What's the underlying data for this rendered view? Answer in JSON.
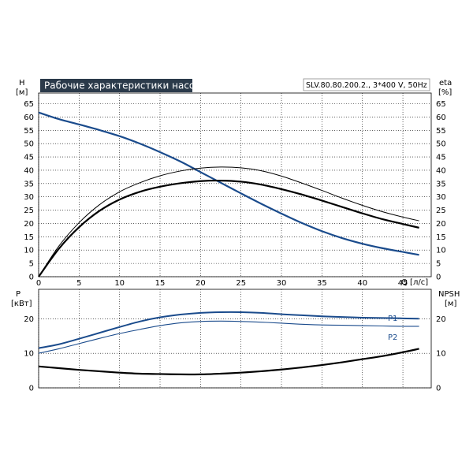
{
  "chart_data": [
    {
      "type": "line",
      "title": "Рабочие характеристики насоса",
      "subtitle": "SLV.80.80.200.2., 3*400 V, 50Hz",
      "ylabel_left": "H",
      "ylabel_left_unit": "[м]",
      "ylabel_right": "eta",
      "ylabel_right_unit": "[%]",
      "xlabel": "Q [л/с]",
      "x_ticks": [
        "0",
        "5",
        "10",
        "15",
        "20",
        "25",
        "30",
        "35",
        "40",
        "45"
      ],
      "y_ticks": [
        "0",
        "5",
        "10",
        "15",
        "20",
        "25",
        "30",
        "35",
        "40",
        "45",
        "50",
        "55",
        "60",
        "65"
      ],
      "xlim": [
        0,
        48.5
      ],
      "ylim": [
        0,
        69
      ],
      "grid": true,
      "colors": {
        "head": "#1a4b8c",
        "efficiency": "#000000"
      },
      "series": [
        {
          "key": "head",
          "x": [
            0,
            2.5,
            5,
            7.5,
            10,
            12.5,
            15,
            17.5,
            20,
            22.5,
            25,
            27.5,
            30,
            32.5,
            35,
            37.5,
            40,
            42.5,
            45,
            47
          ],
          "values": [
            61.7,
            59.2,
            57.2,
            55.1,
            52.8,
            50.0,
            46.8,
            43.3,
            39.3,
            35.3,
            31.3,
            27.4,
            23.7,
            20.2,
            17.1,
            14.5,
            12.4,
            10.7,
            9.3,
            8.2
          ]
        },
        {
          "key": "eta",
          "x": [
            0,
            2.5,
            5,
            7.5,
            10,
            12.5,
            15,
            17.5,
            20,
            22.5,
            25,
            27.5,
            30,
            32.5,
            35,
            37.5,
            40,
            42.5,
            45,
            47
          ],
          "values": [
            0,
            10.5,
            18.6,
            24.7,
            29.0,
            31.9,
            33.8,
            35.1,
            35.9,
            36.1,
            35.7,
            34.6,
            32.9,
            30.9,
            28.6,
            26.2,
            23.8,
            21.6,
            19.8,
            18.4
          ]
        },
        {
          "key": "eta_thin",
          "x": [
            0,
            2.5,
            5,
            7.5,
            10,
            12.5,
            15,
            17.5,
            20,
            22.5,
            25,
            27.5,
            30,
            32.5,
            35,
            37.5,
            40,
            42.5,
            45,
            47
          ],
          "values": [
            0,
            11.5,
            20.3,
            27.0,
            31.9,
            35.3,
            37.9,
            39.7,
            40.8,
            41.2,
            40.9,
            39.8,
            37.8,
            35.2,
            32.4,
            29.5,
            26.8,
            24.4,
            22.4,
            21.0
          ]
        }
      ]
    },
    {
      "type": "line",
      "ylabel_left": "P",
      "ylabel_left_unit": "[кВт]",
      "ylabel_right": "NPSH",
      "ylabel_right_unit": "[м]",
      "y_ticks": [
        "0",
        "10",
        "20"
      ],
      "xlim": [
        0,
        48.5
      ],
      "ylim": [
        0,
        28.5
      ],
      "grid": true,
      "colors": {
        "power": "#1a4b8c",
        "npsh": "#000000"
      },
      "series": [
        {
          "name": "P1",
          "key": "p1",
          "x": [
            0,
            2.5,
            5,
            7.5,
            10,
            12.5,
            15,
            17.5,
            20,
            22.5,
            25,
            27.5,
            30,
            32.5,
            35,
            37.5,
            40,
            42.5,
            45,
            47
          ],
          "values": [
            11.5,
            12.6,
            14.2,
            15.9,
            17.6,
            19.2,
            20.4,
            21.2,
            21.7,
            21.9,
            21.9,
            21.7,
            21.3,
            21.0,
            20.7,
            20.5,
            20.3,
            20.2,
            20.1,
            20.0
          ]
        },
        {
          "name": "P2",
          "key": "p2",
          "x": [
            0,
            2.5,
            5,
            7.5,
            10,
            12.5,
            15,
            17.5,
            20,
            22.5,
            25,
            27.5,
            30,
            32.5,
            35,
            37.5,
            40,
            42.5,
            45,
            47
          ],
          "values": [
            10.0,
            11.3,
            12.8,
            14.3,
            15.7,
            16.9,
            18.0,
            18.8,
            19.2,
            19.3,
            19.2,
            19.0,
            18.7,
            18.4,
            18.2,
            18.1,
            18.0,
            17.9,
            17.8,
            17.8
          ]
        },
        {
          "key": "npsh",
          "x": [
            0,
            2.5,
            5,
            7.5,
            10,
            12.5,
            15,
            17.5,
            20,
            22.5,
            25,
            27.5,
            30,
            32.5,
            35,
            37.5,
            40,
            42.5,
            45,
            47
          ],
          "values": [
            6.2,
            5.7,
            5.2,
            4.8,
            4.4,
            4.1,
            4.0,
            3.9,
            3.9,
            4.1,
            4.4,
            4.8,
            5.3,
            5.9,
            6.6,
            7.4,
            8.3,
            9.2,
            10.3,
            11.3
          ]
        }
      ]
    }
  ]
}
